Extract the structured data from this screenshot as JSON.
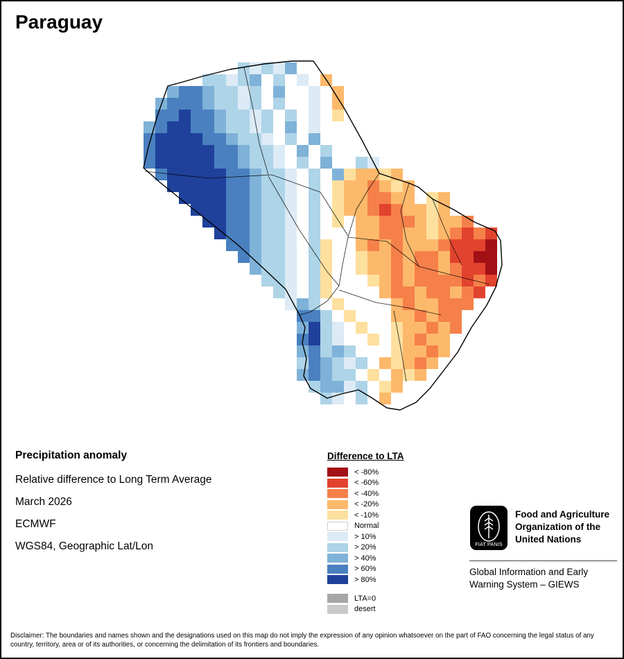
{
  "page": {
    "title": "Paraguay"
  },
  "info": {
    "heading": "Precipitation anomaly",
    "subtitle": "Relative difference to Long Term Average",
    "date": "March 2026",
    "source": "ECMWF",
    "projection": "WGS84, Geographic Lat/Lon"
  },
  "legend": {
    "title": "Difference to LTA",
    "items": [
      {
        "label": "< -80%",
        "color": "#a31016"
      },
      {
        "label": "< -60%",
        "color": "#e2432e"
      },
      {
        "label": "< -40%",
        "color": "#f5804a"
      },
      {
        "label": "< -20%",
        "color": "#fdb96b"
      },
      {
        "label": "< -10%",
        "color": "#fee09e"
      },
      {
        "label": "Normal",
        "color": "#ffffff"
      },
      {
        "label": "> 10%",
        "color": "#dcebf5"
      },
      {
        "label": "> 20%",
        "color": "#aed4e8"
      },
      {
        "label": "> 40%",
        "color": "#7fb2d8"
      },
      {
        "label": "> 60%",
        "color": "#4a80c0"
      },
      {
        "label": "> 80%",
        "color": "#1f419b"
      }
    ],
    "extra_items": [
      {
        "label": "LTA=0",
        "color": "#a6a6a6"
      },
      {
        "label": "desert",
        "color": "#c9c9c9"
      }
    ]
  },
  "fao": {
    "org_name": "Food and Agriculture Organization of the United Nations",
    "giews": "Global Information and Early Warning System – GIEWS",
    "motto": "FIAT PANIS"
  },
  "disclaimer": "Disclaimer: The boundaries and names shown and the designations used on this map do not imply the expression of any opinion whatsoever on the part of FAO concerning the legal status of any country, territory, area or of its authorities, or concerning the delimitation of its frontiers and boundaries.",
  "chart_data": {
    "type": "heatmap",
    "title": "Paraguay — Precipitation anomaly, relative difference to Long Term Average, March 2026 (ECMWF, WGS84 Geographic Lat/Lon)",
    "legend_title": "Difference to LTA",
    "cell_size": 17,
    "origin": [
      205,
      88
    ],
    "classes": {
      "5": {
        "label": "> 80%",
        "color": "#1f419b"
      },
      "4": {
        "label": "> 60%",
        "color": "#4a80c0"
      },
      "3": {
        "label": "> 40%",
        "color": "#7fb2d8"
      },
      "2": {
        "label": "> 20%",
        "color": "#aed4e8"
      },
      "1": {
        "label": "> 10%",
        "color": "#dcebf5"
      },
      "0": {
        "label": "Normal",
        "color": "#ffffff"
      },
      "a": {
        "label": "< -10%",
        "color": "#fee09e"
      },
      "b": {
        "label": "< -20%",
        "color": "#fdb96b"
      },
      "c": {
        "label": "< -40%",
        "color": "#f5804a"
      },
      "d": {
        "label": "< -60%",
        "color": "#e2432e"
      },
      "e": {
        "label": "< -80%",
        "color": "#a31016"
      }
    },
    "grid": [
      "........212130................",
      ".....2212302010b..............",
      "..34432212030010b.............",
      ".344432212020010b.............",
      ".445443221202010a.............",
      "34554432212030100.............",
      "45555443221020300.............",
      "45555544322103020.............",
      "45555544322102030021..........",
      ".4555554432210203abbab........",
      "..55555443221020abbcbab0......",
      "...5555443221020abbccbb0ab....",
      "....555443221020abbcdcbbab0...",
      ".....55443221020a0bbcccbabbc..",
      "......544322102000bbccbbabcdcd",
      ".......44322102a00bcbcbbbcddde",
      "........4322102a00abbcbccbddee",
      ".........322102a00abbcbccbcdde",
      "..........22102a000abcbccccdcd",
      "...........2102a0000bccbccbcd.",
      "............1320a0000bcbbccc..",
      ".............4420a000bbcbcc...",
      ".............35210a00abbcbc...",
      ".............452100a0abcbb....",
      ".............34232000abbcb....",
      ".............2432120babcb.....",
      ".............343220a0bab......",
      "..............233120ab........",
      "...............21020b........."
    ]
  }
}
